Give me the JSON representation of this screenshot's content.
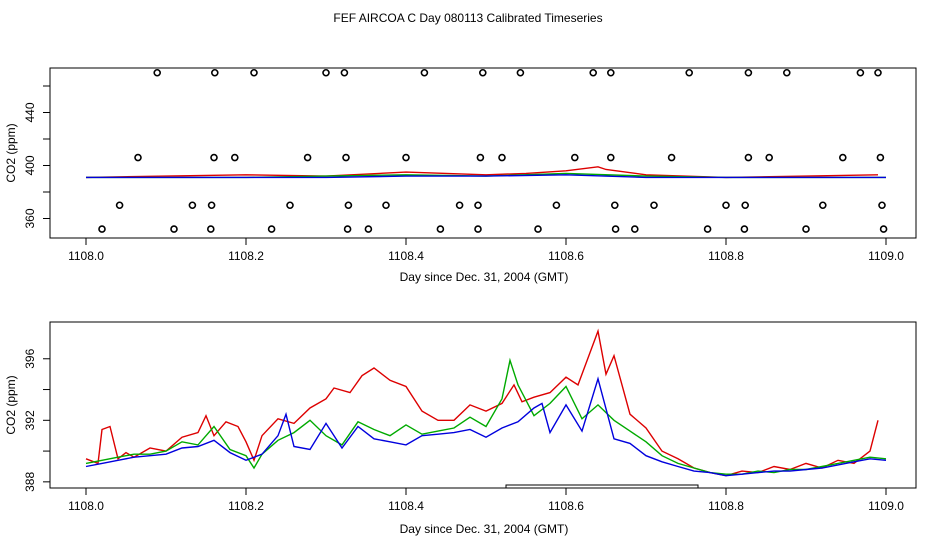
{
  "title": "FEF AIRCOA C  Day 080113  Calibrated Timeseries",
  "colors": {
    "red": "#dd0000",
    "green": "#00aa00",
    "blue": "#0000dd",
    "axis": "#000000"
  },
  "chart_data": [
    {
      "type": "scatter",
      "xlabel": "Day since Dec. 31, 2004 (GMT)",
      "ylabel": "CO2 (ppm)",
      "xlim": [
        1108.0,
        1109.0
      ],
      "ylim": [
        350,
        477
      ],
      "xticks": [
        "1108.0",
        "1108.2",
        "1108.4",
        "1108.6",
        "1108.8",
        "1109.0"
      ],
      "yticks": [
        "360",
        "400",
        "440"
      ],
      "grid": false,
      "markers": [
        {
          "x": 1108.089,
          "y": 470
        },
        {
          "x": 1108.161,
          "y": 470
        },
        {
          "x": 1108.21,
          "y": 470
        },
        {
          "x": 1108.3,
          "y": 470
        },
        {
          "x": 1108.323,
          "y": 470
        },
        {
          "x": 1108.423,
          "y": 470
        },
        {
          "x": 1108.496,
          "y": 470
        },
        {
          "x": 1108.543,
          "y": 470
        },
        {
          "x": 1108.634,
          "y": 470
        },
        {
          "x": 1108.656,
          "y": 470
        },
        {
          "x": 1108.754,
          "y": 470
        },
        {
          "x": 1108.828,
          "y": 470
        },
        {
          "x": 1108.876,
          "y": 470
        },
        {
          "x": 1108.968,
          "y": 470
        },
        {
          "x": 1108.99,
          "y": 470
        },
        {
          "x": 1108.065,
          "y": 406
        },
        {
          "x": 1108.16,
          "y": 406
        },
        {
          "x": 1108.186,
          "y": 406
        },
        {
          "x": 1108.277,
          "y": 406
        },
        {
          "x": 1108.325,
          "y": 406
        },
        {
          "x": 1108.4,
          "y": 406
        },
        {
          "x": 1108.493,
          "y": 406
        },
        {
          "x": 1108.52,
          "y": 406
        },
        {
          "x": 1108.611,
          "y": 406
        },
        {
          "x": 1108.656,
          "y": 406
        },
        {
          "x": 1108.732,
          "y": 406
        },
        {
          "x": 1108.828,
          "y": 406
        },
        {
          "x": 1108.854,
          "y": 406
        },
        {
          "x": 1108.946,
          "y": 406
        },
        {
          "x": 1108.993,
          "y": 406
        },
        {
          "x": 1108.042,
          "y": 370
        },
        {
          "x": 1108.133,
          "y": 370
        },
        {
          "x": 1108.157,
          "y": 370
        },
        {
          "x": 1108.255,
          "y": 370
        },
        {
          "x": 1108.328,
          "y": 370
        },
        {
          "x": 1108.375,
          "y": 370
        },
        {
          "x": 1108.467,
          "y": 370
        },
        {
          "x": 1108.49,
          "y": 370
        },
        {
          "x": 1108.588,
          "y": 370
        },
        {
          "x": 1108.661,
          "y": 370
        },
        {
          "x": 1108.71,
          "y": 370
        },
        {
          "x": 1108.8,
          "y": 370
        },
        {
          "x": 1108.824,
          "y": 370
        },
        {
          "x": 1108.921,
          "y": 370
        },
        {
          "x": 1108.995,
          "y": 370
        },
        {
          "x": 1108.02,
          "y": 352
        },
        {
          "x": 1108.11,
          "y": 352
        },
        {
          "x": 1108.156,
          "y": 352
        },
        {
          "x": 1108.232,
          "y": 352
        },
        {
          "x": 1108.327,
          "y": 352
        },
        {
          "x": 1108.353,
          "y": 352
        },
        {
          "x": 1108.443,
          "y": 352
        },
        {
          "x": 1108.49,
          "y": 352
        },
        {
          "x": 1108.565,
          "y": 352
        },
        {
          "x": 1108.662,
          "y": 352
        },
        {
          "x": 1108.686,
          "y": 352
        },
        {
          "x": 1108.777,
          "y": 352
        },
        {
          "x": 1108.823,
          "y": 352
        },
        {
          "x": 1108.9,
          "y": 352
        },
        {
          "x": 1108.997,
          "y": 352
        }
      ],
      "series": [
        {
          "color": "red",
          "x": [
            1108.0,
            1108.1,
            1108.2,
            1108.3,
            1108.4,
            1108.5,
            1108.55,
            1108.6,
            1108.64,
            1108.65,
            1108.7,
            1108.8,
            1108.9,
            1108.99
          ],
          "y": [
            391,
            392,
            393,
            392,
            395,
            393,
            394,
            396,
            399,
            397,
            393,
            391,
            392,
            393
          ]
        },
        {
          "color": "green",
          "x": [
            1108.0,
            1108.1,
            1108.2,
            1108.3,
            1108.4,
            1108.5,
            1108.6,
            1108.7,
            1108.8,
            1108.9,
            1109.0
          ],
          "y": [
            391,
            391,
            391,
            392,
            393,
            392,
            394,
            392,
            391,
            391,
            391
          ]
        },
        {
          "color": "blue",
          "x": [
            1108.0,
            1108.1,
            1108.2,
            1108.3,
            1108.4,
            1108.5,
            1108.6,
            1108.7,
            1108.8,
            1108.9,
            1109.0
          ],
          "y": [
            391,
            391,
            391,
            391,
            392,
            392,
            393,
            391,
            391,
            391,
            391
          ]
        }
      ]
    },
    {
      "type": "line",
      "xlabel": "Day since Dec. 31, 2004 (GMT)",
      "ylabel": "CO2 (ppm)",
      "xlim": [
        1108.0,
        1109.0
      ],
      "ylim": [
        387.6,
        398.0
      ],
      "xticks": [
        "1108.0",
        "1108.2",
        "1108.4",
        "1108.6",
        "1108.8",
        "1109.0"
      ],
      "yticks": [
        "388",
        "392",
        "396"
      ],
      "grid": false,
      "series": [
        {
          "color": "red",
          "x": [
            1108.0,
            1108.015,
            1108.02,
            1108.03,
            1108.04,
            1108.05,
            1108.06,
            1108.08,
            1108.1,
            1108.12,
            1108.14,
            1108.15,
            1108.16,
            1108.175,
            1108.19,
            1108.2,
            1108.21,
            1108.22,
            1108.24,
            1108.26,
            1108.28,
            1108.3,
            1108.31,
            1108.33,
            1108.345,
            1108.36,
            1108.38,
            1108.4,
            1108.42,
            1108.44,
            1108.46,
            1108.48,
            1108.5,
            1108.52,
            1108.535,
            1108.545,
            1108.56,
            1108.58,
            1108.6,
            1108.615,
            1108.63,
            1108.64,
            1108.65,
            1108.66,
            1108.68,
            1108.7,
            1108.72,
            1108.74,
            1108.76,
            1108.78,
            1108.8,
            1108.82,
            1108.84,
            1108.86,
            1108.88,
            1108.9,
            1108.92,
            1108.94,
            1108.96,
            1108.98,
            1108.99
          ],
          "y": [
            389.5,
            389.2,
            391.4,
            391.6,
            389.5,
            389.9,
            389.6,
            390.2,
            390.0,
            390.9,
            391.2,
            392.3,
            391.0,
            391.9,
            391.6,
            390.6,
            389.4,
            391.0,
            392.1,
            391.8,
            392.8,
            393.4,
            394.1,
            393.8,
            394.9,
            395.4,
            394.6,
            394.2,
            392.6,
            392.0,
            392.0,
            393.0,
            392.6,
            393.1,
            394.3,
            393.2,
            393.5,
            393.8,
            394.8,
            394.3,
            396.4,
            397.8,
            395.0,
            396.2,
            392.4,
            391.5,
            390.0,
            389.5,
            388.9,
            388.6,
            388.4,
            388.7,
            388.6,
            389.0,
            388.8,
            389.2,
            388.9,
            389.4,
            389.2,
            390.0,
            392.0
          ]
        },
        {
          "color": "green",
          "x": [
            1108.0,
            1108.02,
            1108.04,
            1108.06,
            1108.08,
            1108.1,
            1108.12,
            1108.14,
            1108.16,
            1108.18,
            1108.2,
            1108.21,
            1108.22,
            1108.24,
            1108.26,
            1108.28,
            1108.3,
            1108.32,
            1108.34,
            1108.36,
            1108.38,
            1108.4,
            1108.42,
            1108.44,
            1108.46,
            1108.48,
            1108.5,
            1108.52,
            1108.53,
            1108.54,
            1108.56,
            1108.58,
            1108.6,
            1108.62,
            1108.64,
            1108.66,
            1108.68,
            1108.7,
            1108.72,
            1108.74,
            1108.76,
            1108.78,
            1108.8,
            1108.82,
            1108.84,
            1108.86,
            1108.88,
            1108.9,
            1108.92,
            1108.94,
            1108.96,
            1108.98,
            1109.0
          ],
          "y": [
            389.2,
            389.4,
            389.6,
            389.8,
            389.8,
            390.0,
            390.6,
            390.4,
            391.6,
            390.1,
            389.7,
            388.9,
            389.8,
            390.7,
            391.2,
            392.0,
            391.0,
            390.4,
            391.9,
            391.4,
            391.0,
            391.7,
            391.1,
            391.3,
            391.5,
            392.2,
            391.6,
            393.4,
            395.9,
            394.3,
            392.3,
            393.1,
            394.2,
            392.1,
            393.0,
            392.0,
            391.3,
            390.6,
            389.7,
            389.2,
            388.9,
            388.6,
            388.5,
            388.5,
            388.7,
            388.6,
            388.8,
            388.8,
            389.0,
            389.2,
            389.4,
            389.6,
            389.5
          ]
        },
        {
          "color": "blue",
          "x": [
            1108.0,
            1108.02,
            1108.04,
            1108.06,
            1108.08,
            1108.1,
            1108.12,
            1108.14,
            1108.16,
            1108.18,
            1108.2,
            1108.22,
            1108.24,
            1108.25,
            1108.26,
            1108.28,
            1108.3,
            1108.32,
            1108.34,
            1108.36,
            1108.38,
            1108.4,
            1108.42,
            1108.44,
            1108.46,
            1108.48,
            1108.5,
            1108.52,
            1108.54,
            1108.56,
            1108.57,
            1108.58,
            1108.6,
            1108.62,
            1108.64,
            1108.66,
            1108.68,
            1108.7,
            1108.72,
            1108.74,
            1108.76,
            1108.78,
            1108.8,
            1108.82,
            1108.84,
            1108.86,
            1108.88,
            1108.9,
            1108.92,
            1108.94,
            1108.96,
            1108.98,
            1109.0
          ],
          "y": [
            389.0,
            389.2,
            389.4,
            389.6,
            389.7,
            389.8,
            390.2,
            390.3,
            390.7,
            389.9,
            389.4,
            389.8,
            391.0,
            392.4,
            390.3,
            390.1,
            391.8,
            390.2,
            391.6,
            390.8,
            390.6,
            390.4,
            391.0,
            391.1,
            391.2,
            391.4,
            390.9,
            391.5,
            391.9,
            392.8,
            393.1,
            391.2,
            393.0,
            391.3,
            394.7,
            390.8,
            390.5,
            389.7,
            389.3,
            389.0,
            388.7,
            388.6,
            388.4,
            388.5,
            388.6,
            388.7,
            388.7,
            388.8,
            388.9,
            389.1,
            389.3,
            389.5,
            389.4
          ]
        }
      ],
      "range_bar": {
        "x_start": 1108.525,
        "x_end": 1108.765
      }
    }
  ]
}
